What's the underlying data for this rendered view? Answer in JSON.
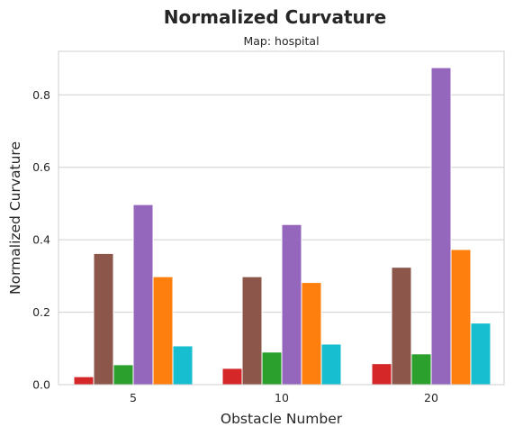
{
  "chart_data": {
    "type": "bar",
    "title": "Normalized Curvature",
    "subtitle": "Map: hospital",
    "xlabel": "Obstacle Number",
    "ylabel": "Normalized Curvature",
    "categories": [
      "5",
      "10",
      "20"
    ],
    "ylim": [
      0,
      0.92
    ],
    "yticks": [
      0.0,
      0.2,
      0.4,
      0.6,
      0.8
    ],
    "ytick_labels": [
      "0.0",
      "0.2",
      "0.4",
      "0.6",
      "0.8"
    ],
    "grid": true,
    "legend": "none",
    "series": [
      {
        "color": "#d62728",
        "values": [
          0.022,
          0.045,
          0.058
        ]
      },
      {
        "color": "#8c564b",
        "values": [
          0.362,
          0.298,
          0.324
        ]
      },
      {
        "color": "#2ca02c",
        "values": [
          0.055,
          0.09,
          0.085
        ]
      },
      {
        "color": "#9467bd",
        "values": [
          0.497,
          0.442,
          0.875
        ]
      },
      {
        "color": "#ff7f0e",
        "values": [
          0.298,
          0.282,
          0.373
        ]
      },
      {
        "color": "#17becf",
        "values": [
          0.107,
          0.112,
          0.17
        ]
      }
    ]
  }
}
